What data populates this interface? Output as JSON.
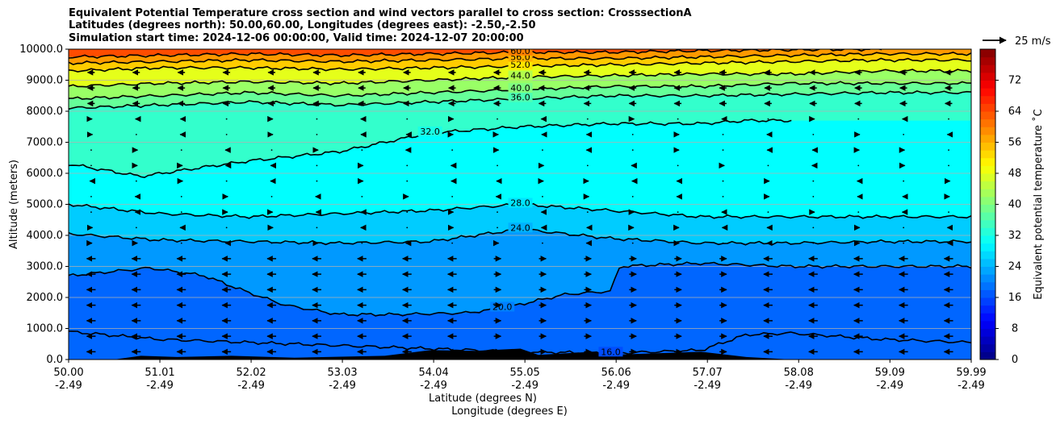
{
  "chart_data": {
    "type": "heatmap",
    "title_lines": [
      "Equivalent Potential Temperature cross section and wind vectors parallel to cross section: CrosssectionA",
      "Latitudes (degrees north): 50.00,60.00, Longitudes (degrees east): -2.50,-2.50",
      "Simulation start time: 2024-12-06 00:00:00, Valid time: 2024-12-07 20:00:00"
    ],
    "ylabel": "Altitude (meters)",
    "xlabel_lat": "Latitude (degrees N)",
    "xlabel_lon": "Longitude (degrees E)",
    "ylim": [
      0,
      10000
    ],
    "y_ticks": [
      "0.0",
      "1000.0",
      "2000.0",
      "3000.0",
      "4000.0",
      "5000.0",
      "6000.0",
      "7000.0",
      "8000.0",
      "9000.0",
      "10000.0"
    ],
    "x_ticks_lat": [
      "50.00",
      "51.01",
      "52.02",
      "53.03",
      "54.04",
      "55.05",
      "56.06",
      "57.07",
      "58.08",
      "59.09",
      "59.99"
    ],
    "x_ticks_lon": [
      "-2.49",
      "-2.49",
      "-2.49",
      "-2.49",
      "-2.49",
      "-2.49",
      "-2.49",
      "-2.49",
      "-2.49",
      "-2.49",
      "-2.49"
    ],
    "colorbar": {
      "label": "Equivalent potential temperature $^\\circ$C",
      "label_display": "Equivalent potential temperature ˚C",
      "range": [
        0,
        80
      ],
      "ticks": [
        "0",
        "8",
        "16",
        "24",
        "32",
        "40",
        "48",
        "56",
        "64",
        "72"
      ]
    },
    "wind_key": {
      "label": "25 m/s",
      "speed": 25
    },
    "contours": [
      {
        "value": 16,
        "label": "16.0",
        "points": [
          [
            50.0,
            900
          ],
          [
            51.0,
            650
          ],
          [
            52.0,
            550
          ],
          [
            53.0,
            450
          ],
          [
            54.0,
            350
          ],
          [
            55.0,
            250
          ],
          [
            56.0,
            200
          ],
          [
            57.0,
            300
          ],
          [
            57.5,
            800
          ],
          [
            58.0,
            850
          ],
          [
            59.0,
            650
          ],
          [
            59.99,
            550
          ]
        ]
      },
      {
        "value": 20,
        "label": "20.0",
        "points": [
          [
            50.0,
            2700
          ],
          [
            50.9,
            2950
          ],
          [
            51.5,
            2700
          ],
          [
            52.0,
            2150
          ],
          [
            52.4,
            1750
          ],
          [
            53.0,
            1450
          ],
          [
            53.6,
            1450
          ],
          [
            54.4,
            1500
          ],
          [
            54.8,
            1650
          ],
          [
            55.5,
            2100
          ],
          [
            56.0,
            2200
          ],
          [
            56.1,
            3000
          ],
          [
            56.5,
            3050
          ],
          [
            57.0,
            3100
          ],
          [
            58.0,
            3000
          ],
          [
            59.0,
            3000
          ],
          [
            59.99,
            3000
          ]
        ]
      },
      {
        "value": 24,
        "label": "24.0",
        "points": [
          [
            50.0,
            4050
          ],
          [
            51.0,
            3850
          ],
          [
            52.0,
            3800
          ],
          [
            53.0,
            3750
          ],
          [
            54.0,
            3800
          ],
          [
            55.0,
            4200
          ],
          [
            56.0,
            3900
          ],
          [
            57.0,
            3750
          ],
          [
            58.0,
            3750
          ],
          [
            59.0,
            3800
          ],
          [
            59.99,
            3800
          ]
        ]
      },
      {
        "value": 28,
        "label": "28.0",
        "points": [
          [
            50.0,
            5000
          ],
          [
            51.0,
            4700
          ],
          [
            52.0,
            4600
          ],
          [
            53.0,
            4700
          ],
          [
            54.0,
            4800
          ],
          [
            55.0,
            5000
          ],
          [
            56.0,
            4800
          ],
          [
            57.0,
            4600
          ],
          [
            58.0,
            4600
          ],
          [
            59.0,
            4600
          ],
          [
            59.99,
            4600
          ]
        ]
      },
      {
        "value": 32,
        "label": "32.0",
        "points": [
          [
            50.0,
            6300
          ],
          [
            50.8,
            5900
          ],
          [
            51.5,
            6200
          ],
          [
            52.0,
            6400
          ],
          [
            53.0,
            6700
          ],
          [
            54.0,
            7300
          ],
          [
            55.0,
            7500
          ],
          [
            56.0,
            7600
          ],
          [
            57.0,
            7600
          ],
          [
            57.5,
            7700
          ],
          [
            58.0,
            7700
          ]
        ]
      },
      {
        "value": 36,
        "label": "36.0",
        "points": [
          [
            50.0,
            8100
          ],
          [
            51.0,
            8200
          ],
          [
            52.0,
            8300
          ],
          [
            53.0,
            8200
          ],
          [
            54.0,
            8300
          ],
          [
            55.0,
            8400
          ],
          [
            56.0,
            8500
          ],
          [
            57.0,
            8500
          ],
          [
            58.0,
            8550
          ],
          [
            59.0,
            8600
          ],
          [
            59.99,
            8600
          ]
        ]
      },
      {
        "value": 40,
        "label": "40.0",
        "points": [
          [
            50.0,
            8400
          ],
          [
            51.0,
            8500
          ],
          [
            52.0,
            8600
          ],
          [
            53.0,
            8500
          ],
          [
            54.0,
            8600
          ],
          [
            55.0,
            8700
          ],
          [
            56.0,
            8800
          ],
          [
            57.0,
            8800
          ],
          [
            58.0,
            8900
          ],
          [
            59.0,
            8900
          ],
          [
            59.99,
            8900
          ]
        ]
      },
      {
        "value": 44,
        "label": "44.0",
        "points": [
          [
            50.0,
            8800
          ],
          [
            51.0,
            8900
          ],
          [
            52.0,
            8950
          ],
          [
            53.0,
            8900
          ],
          [
            54.0,
            9000
          ],
          [
            55.0,
            9100
          ],
          [
            56.0,
            9150
          ],
          [
            57.0,
            9200
          ],
          [
            58.0,
            9200
          ],
          [
            59.0,
            9300
          ],
          [
            59.99,
            9300
          ]
        ]
      },
      {
        "value": 52,
        "label": "52.0",
        "points": [
          [
            50.0,
            9300
          ],
          [
            51.0,
            9400
          ],
          [
            52.0,
            9400
          ],
          [
            53.0,
            9350
          ],
          [
            54.0,
            9400
          ],
          [
            55.0,
            9450
          ],
          [
            56.0,
            9500
          ],
          [
            57.0,
            9550
          ],
          [
            58.0,
            9600
          ],
          [
            59.0,
            9650
          ],
          [
            59.99,
            9650
          ]
        ]
      },
      {
        "value": 56,
        "label": "56.0",
        "points": [
          [
            50.0,
            9550
          ],
          [
            51.0,
            9600
          ],
          [
            52.0,
            9650
          ],
          [
            53.0,
            9600
          ],
          [
            54.0,
            9650
          ],
          [
            55.0,
            9700
          ],
          [
            56.0,
            9700
          ],
          [
            57.0,
            9750
          ],
          [
            58.0,
            9800
          ],
          [
            59.0,
            9850
          ],
          [
            59.99,
            9850
          ]
        ]
      },
      {
        "value": 60,
        "label": "60.0",
        "points": [
          [
            50.0,
            9750
          ],
          [
            51.0,
            9800
          ],
          [
            52.0,
            9850
          ],
          [
            53.0,
            9800
          ],
          [
            54.0,
            9850
          ],
          [
            55.0,
            9900
          ],
          [
            56.0,
            9900
          ],
          [
            57.0,
            9950
          ],
          [
            58.0,
            9980
          ],
          [
            59.0,
            10000
          ]
        ]
      }
    ],
    "contour_labels": [
      "60.0",
      "60.0",
      "60.0",
      "60.0",
      "60.0",
      "56.0",
      "52.0",
      "44.0",
      "40.0",
      "36.0",
      "32.0",
      "32.0",
      "32.0",
      "32.0",
      "28.0",
      "24.0",
      "20.0",
      "16.0",
      "20.0"
    ]
  }
}
